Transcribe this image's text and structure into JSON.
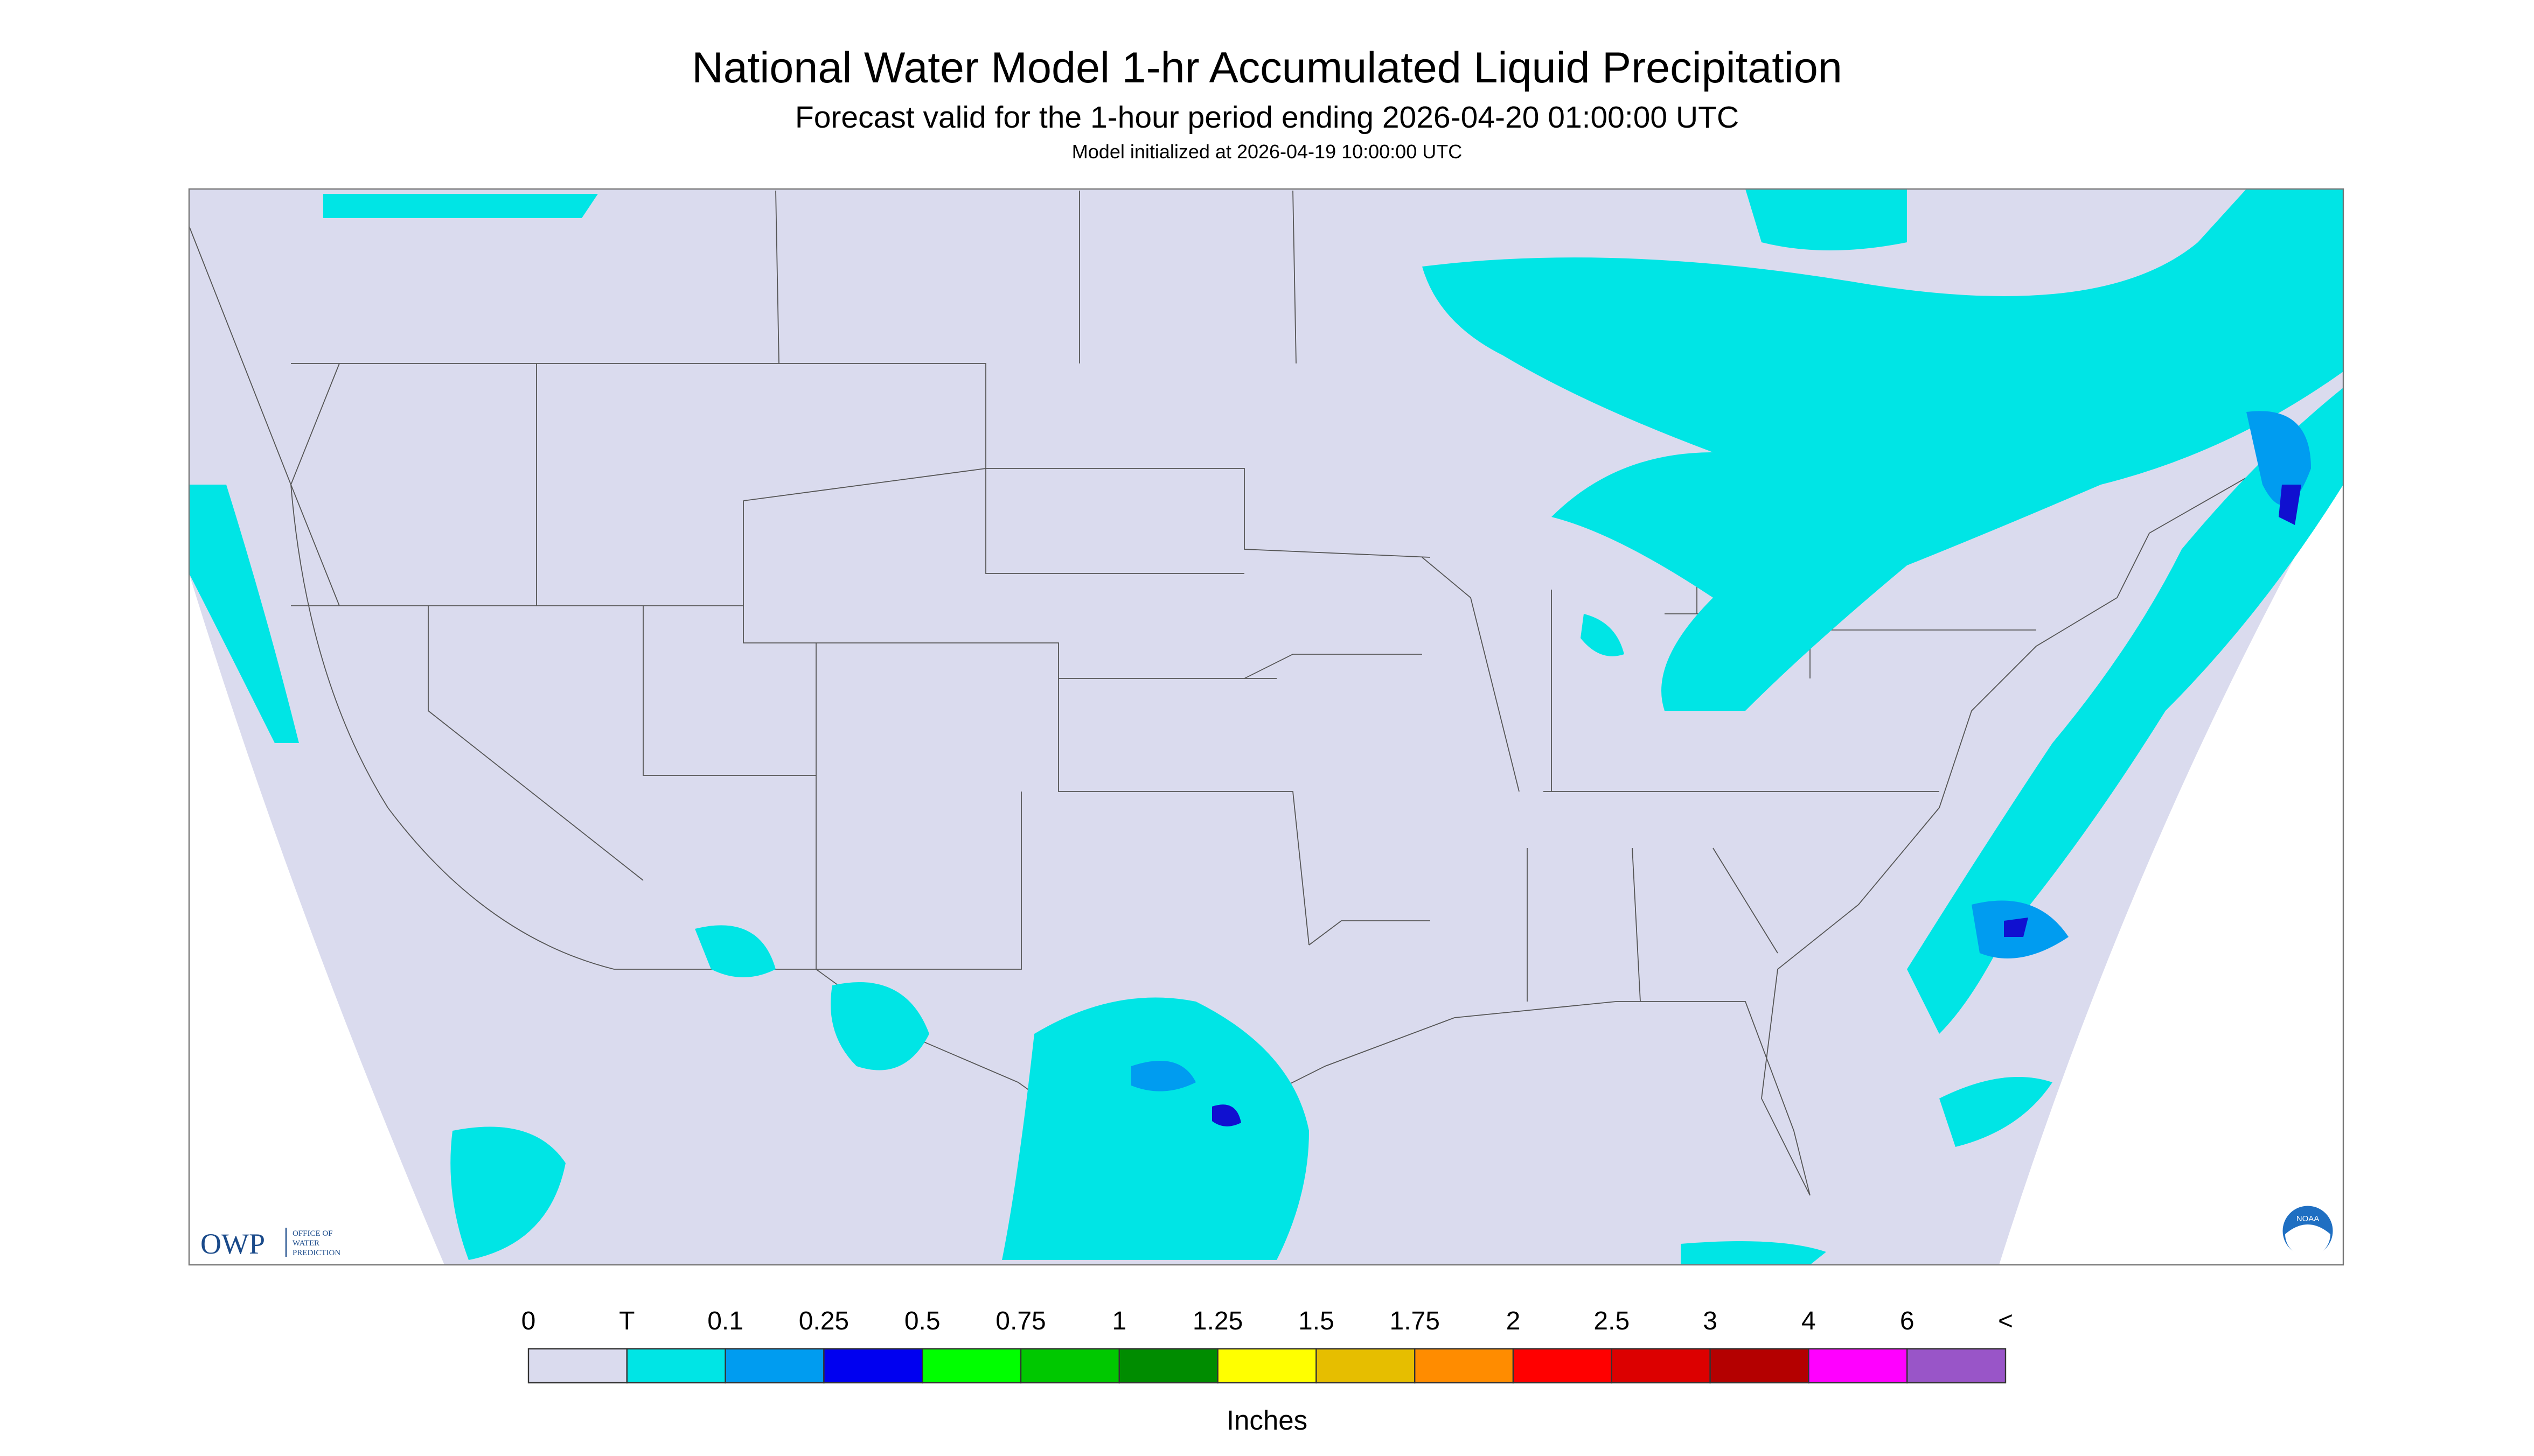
{
  "header": {
    "title": "National Water Model 1-hr Accumulated Liquid Precipitation",
    "subtitle": "Forecast valid for the 1-hour period ending 2026-04-20 01:00:00 UTC",
    "init": "Model initialized at 2026-04-19 10:00:00 UTC"
  },
  "logos": {
    "owp": "OWP",
    "owp_text": [
      "OFFICE OF",
      "WATER",
      "PREDICTION"
    ],
    "noaa": "NOAA"
  },
  "legend": {
    "labels": [
      "0",
      "T",
      "0.1",
      "0.25",
      "0.5",
      "0.75",
      "1",
      "1.25",
      "1.5",
      "1.75",
      "2",
      "2.5",
      "3",
      "4",
      "6",
      "<"
    ],
    "colors": [
      "#dadbee",
      "#00e5e5",
      "#009cf0",
      "#0000f0",
      "#00ff00",
      "#00c800",
      "#008c00",
      "#ffff00",
      "#e6be00",
      "#ff8c00",
      "#ff0000",
      "#dc0000",
      "#b40000",
      "#ff00ff",
      "#9955c8"
    ],
    "unit": "Inches"
  }
}
